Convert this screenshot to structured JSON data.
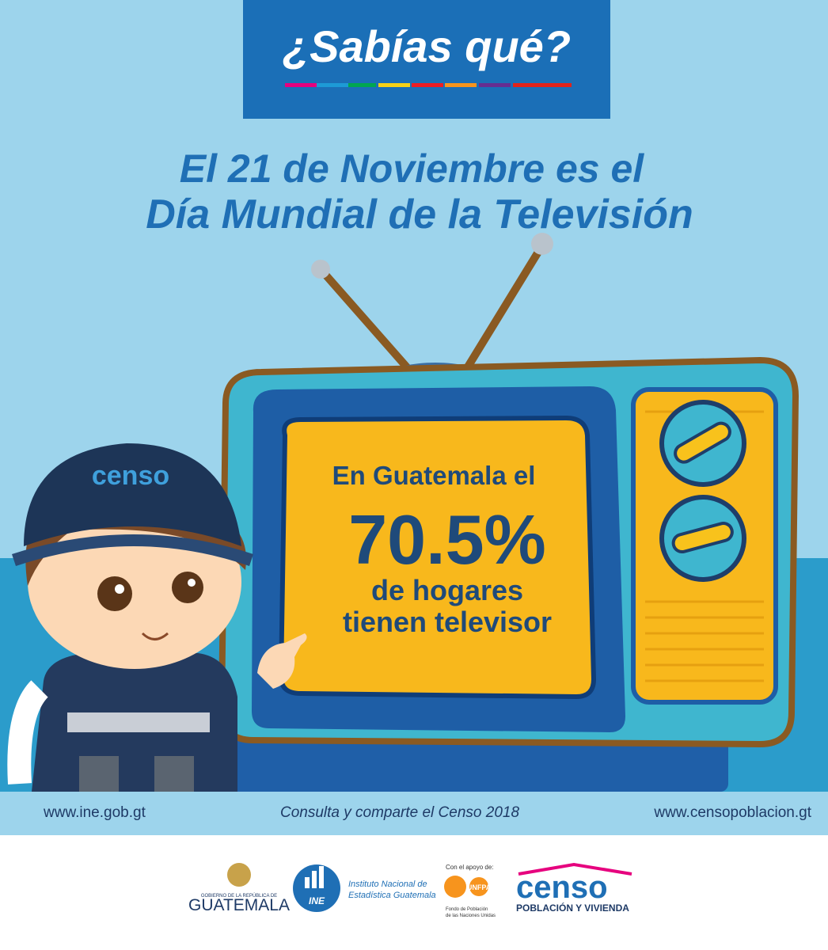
{
  "header": {
    "title": "¿Sabías qué?"
  },
  "headline": {
    "line1": "El 21 de Noviembre es el",
    "line2": "Día Mundial de la Televisión"
  },
  "screen": {
    "line1": "En Guatemala el",
    "figure": "70.5%",
    "line2": "de hogares",
    "line3": "tienen televisor"
  },
  "mascot": {
    "cap": "censo"
  },
  "footer": {
    "left": "www.ine.gob.gt",
    "center": "Consulta y comparte el Censo 2018",
    "right": "www.censopoblacion.gt"
  },
  "logos": {
    "guatemala": {
      "small": "GOBIERNO DE LA REPÚBLICA DE",
      "big": "GUATEMALA"
    },
    "ine": {
      "abbr": "INE",
      "line1": "Instituto Nacional de",
      "line2": "Estadística Guatemala"
    },
    "unfpa": {
      "support": "Con el apoyo de:",
      "name": "UNFPA",
      "line1": "Fondo de Población",
      "line2": "de las Naciones Unidas"
    },
    "censo": {
      "name": "censo",
      "tagline": "POBLACIÓN Y VIVIENDA"
    }
  }
}
